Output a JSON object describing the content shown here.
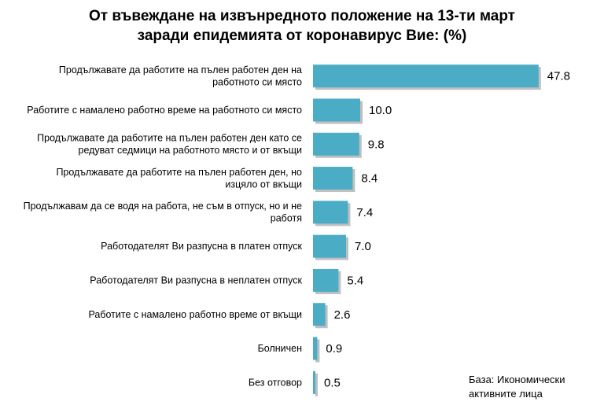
{
  "chart_data": {
    "type": "bar",
    "orientation": "horizontal",
    "title_lines": [
      "От въвеждане на извънредното положение на 13-ти март",
      "заради епидемията от коронавирус Вие: (%)"
    ],
    "categories": [
      [
        "Продължавате да работите на пълен работен ден на",
        "работното си място"
      ],
      [
        "Работите с намалено работно време на работното си място"
      ],
      [
        "Продължавате да работите на пълен работен ден като се",
        "редуват седмици на работното място и от вкъщи"
      ],
      [
        "Продължавате да работите на пълен работен ден, но",
        "изцяло от вкъщи"
      ],
      [
        "Продължавам да се водя на работа, не съм в отпуск, но и не",
        "работя"
      ],
      [
        "Работодателят Ви разпусна в платен отпуск"
      ],
      [
        "Работодателят Ви разпусна в неплатен отпуск"
      ],
      [
        "Работите с намалено работно време от вкъщи"
      ],
      [
        "Болничен"
      ],
      [
        "Без отговор"
      ]
    ],
    "values": [
      47.8,
      10.0,
      9.8,
      8.4,
      7.4,
      7.0,
      5.4,
      2.6,
      0.9,
      0.5
    ],
    "value_labels": [
      "47.8",
      "10.0",
      "9.8",
      "8.4",
      "7.4",
      "7.0",
      "5.4",
      "2.6",
      "0.9",
      "0.5"
    ],
    "xlim": [
      0,
      50
    ],
    "grid": false,
    "legend": "none",
    "bar_color": "#4bacc6",
    "note_lines": [
      "База: Икономически",
      "активните лица"
    ]
  }
}
